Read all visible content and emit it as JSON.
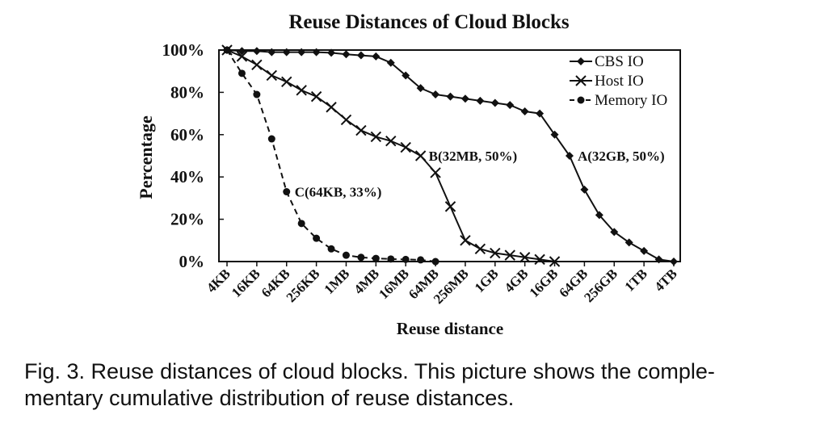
{
  "caption": "Fig. 3. Reuse distances of cloud blocks. This picture shows the complementary cumulative distribution of reuse distances.",
  "caption_lines": [
    "Fig. 3. Reuse distances of cloud blocks. This picture shows the comple-",
    "mentary cumulative distribution of reuse distances."
  ],
  "chart_data": {
    "type": "line",
    "title": "Reuse Distances of Cloud Blocks",
    "xlabel": "Reuse distance",
    "ylabel": "Percentage",
    "x_scale": "log2",
    "x_tick_labels": [
      "4KB",
      "16KB",
      "64KB",
      "256KB",
      "1MB",
      "4MB",
      "16MB",
      "64MB",
      "256MB",
      "1GB",
      "4GB",
      "16GB",
      "64GB",
      "256GB",
      "1TB",
      "4TB"
    ],
    "y_ticks": [
      0,
      20,
      40,
      60,
      80,
      100
    ],
    "y_tick_labels": [
      "0%",
      "20%",
      "40%",
      "60%",
      "80%",
      "100%"
    ],
    "ylim": [
      0,
      100
    ],
    "grid": false,
    "legend_position": "top-right",
    "series": [
      {
        "name": "CBS IO",
        "marker": "diamond",
        "line_style": "solid",
        "x": [
          "4KB",
          "8KB",
          "16KB",
          "32KB",
          "64KB",
          "128KB",
          "256KB",
          "512KB",
          "1MB",
          "2MB",
          "4MB",
          "8MB",
          "16MB",
          "32MB",
          "64MB",
          "128MB",
          "256MB",
          "512MB",
          "1GB",
          "2GB",
          "4GB",
          "8GB",
          "16GB",
          "32GB",
          "64GB",
          "128GB",
          "256GB",
          "512GB",
          "1TB",
          "2TB",
          "4TB"
        ],
        "y": [
          100,
          99.5,
          99.5,
          99,
          99,
          99,
          99,
          98.7,
          98,
          97.5,
          97,
          94,
          88,
          82,
          79,
          78,
          77,
          76,
          75,
          74,
          71,
          70,
          60,
          50,
          34,
          22,
          14,
          9,
          5,
          1,
          0
        ]
      },
      {
        "name": "Host IO",
        "marker": "x",
        "line_style": "solid",
        "x": [
          "4KB",
          "8KB",
          "16KB",
          "32KB",
          "64KB",
          "128KB",
          "256KB",
          "512KB",
          "1MB",
          "2MB",
          "4MB",
          "8MB",
          "16MB",
          "32MB",
          "64MB",
          "128MB",
          "256MB",
          "512MB",
          "1GB",
          "2GB",
          "4GB",
          "8GB",
          "16GB"
        ],
        "y": [
          100,
          97,
          93,
          88,
          85,
          81,
          78,
          73,
          67,
          62,
          59,
          57,
          54,
          50,
          42,
          26,
          10,
          6,
          4,
          3,
          2,
          1,
          0
        ]
      },
      {
        "name": "Memory IO",
        "marker": "circle",
        "line_style": "dashed",
        "x": [
          "4KB",
          "8KB",
          "16KB",
          "32KB",
          "64KB",
          "128KB",
          "256KB",
          "512KB",
          "1MB",
          "2MB",
          "4MB",
          "8MB",
          "16MB",
          "32MB",
          "64MB"
        ],
        "y": [
          100,
          89,
          79,
          58,
          33,
          18,
          11,
          6,
          3,
          2,
          1.5,
          1.2,
          1,
          0.8,
          0
        ]
      }
    ],
    "annotations": [
      {
        "text": "A(32GB, 50%)",
        "x": "32GB",
        "y": 50
      },
      {
        "text": "B(32MB, 50%)",
        "x": "32MB",
        "y": 50
      },
      {
        "text": "C(64KB, 33%)",
        "x": "64KB",
        "y": 33
      }
    ]
  }
}
